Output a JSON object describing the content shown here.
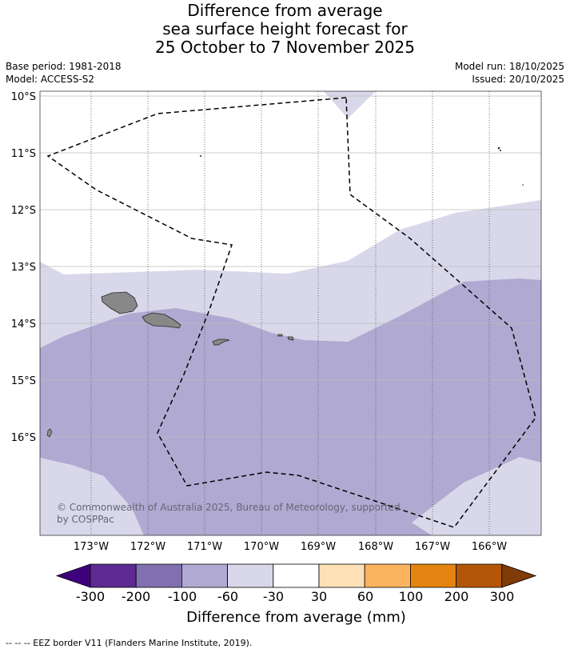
{
  "title": {
    "line1": "Difference from average",
    "line2": "sea surface height forecast for",
    "line3": "25 October to 7 November 2025"
  },
  "meta": {
    "base_period": "Base period: 1981-2018",
    "model": "Model: ACCESS-S2",
    "model_run": "Model run: 18/10/2025",
    "issued": "Issued: 20/10/2025"
  },
  "map": {
    "lat_labels": [
      "10°S",
      "11°S",
      "12°S",
      "13°S",
      "14°S",
      "15°S",
      "16°S"
    ],
    "lon_labels": [
      "173°W",
      "172°W",
      "171°W",
      "170°W",
      "169°W",
      "168°W",
      "167°W",
      "166°W"
    ],
    "copyright_line1": "© Commonwealth of Australia 2025, Bureau of Meteorology, supported",
    "copyright_line2": "by COSPPac",
    "colors": {
      "band_minus100_minus60": "#b0a9d1",
      "band_minus60_minus30": "#d9d8ea",
      "band_minus30_30": "#ffffff",
      "land": "#888888"
    }
  },
  "colorbar": {
    "tick_labels": [
      "-300",
      "-200",
      "-100",
      "-60",
      "-30",
      "30",
      "60",
      "100",
      "200",
      "300"
    ],
    "colors": [
      "#3f007d",
      "#5d2a91",
      "#8070b0",
      "#b0a9d1",
      "#d9d8ea",
      "#ffffff",
      "#fde0b6",
      "#fbb45e",
      "#e2840f",
      "#b45608",
      "#7f3b08"
    ],
    "label": "Difference from average (mm)"
  },
  "footnote": "--  --  -- EEZ border V11 (Flanders Marine Institute, 2019)."
}
